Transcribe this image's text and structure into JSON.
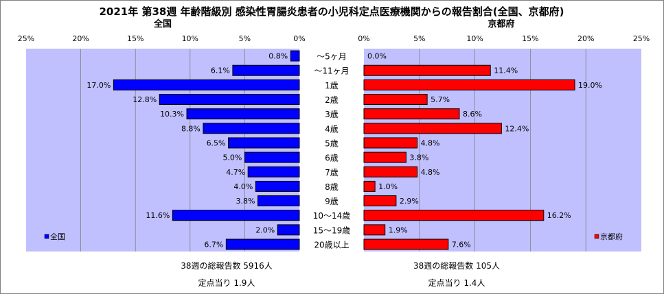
{
  "title": "2021年 第38週 年齢階級別 感染性胃腸炎患者の小児科定点医療機関からの報告割合(全国、京都府)",
  "colors": {
    "plot_bg": "#C0C0FF",
    "national_bar": "#0000FF",
    "kyoto_bar": "#FF0000",
    "grid": "#808080"
  },
  "chart_data": [
    {
      "type": "bar",
      "orientation": "horizontal-reversed",
      "title": "全国",
      "legend": "全国",
      "legend_position": "bottom-left",
      "xlim": [
        0,
        25
      ],
      "ticks": [
        "25%",
        "20%",
        "15%",
        "10%",
        "5%",
        "0%"
      ],
      "categories": [
        "～5ヶ月",
        "～11ヶ月",
        "1歳",
        "2歳",
        "3歳",
        "4歳",
        "5歳",
        "6歳",
        "7歳",
        "8歳",
        "9歳",
        "10～14歳",
        "15～19歳",
        "20歳以上"
      ],
      "values": [
        0.8,
        6.1,
        17.0,
        12.8,
        10.3,
        8.8,
        6.5,
        5.0,
        4.7,
        4.0,
        3.8,
        11.6,
        2.0,
        6.7
      ],
      "labels": [
        "0.8%",
        "6.1%",
        "17.0%",
        "12.8%",
        "10.3%",
        "8.8%",
        "6.5%",
        "5.0%",
        "4.7%",
        "4.0%",
        "3.8%",
        "11.6%",
        "2.0%",
        "6.7%"
      ],
      "grid": true
    },
    {
      "type": "bar",
      "orientation": "horizontal",
      "title": "京都府",
      "legend": "京都府",
      "legend_position": "bottom-right",
      "xlim": [
        0,
        25
      ],
      "ticks": [
        "0%",
        "5%",
        "10%",
        "15%",
        "20%",
        "25%"
      ],
      "categories": [
        "～5ヶ月",
        "～11ヶ月",
        "1歳",
        "2歳",
        "3歳",
        "4歳",
        "5歳",
        "6歳",
        "7歳",
        "8歳",
        "9歳",
        "10～14歳",
        "15～19歳",
        "20歳以上"
      ],
      "values": [
        0.0,
        11.4,
        19.0,
        5.7,
        8.6,
        12.4,
        4.8,
        3.8,
        4.8,
        1.0,
        2.9,
        16.2,
        1.9,
        7.6
      ],
      "labels": [
        "0.0%",
        "11.4%",
        "19.0%",
        "5.7%",
        "8.6%",
        "12.4%",
        "4.8%",
        "3.8%",
        "4.8%",
        "1.0%",
        "2.9%",
        "16.2%",
        "1.9%",
        "7.6%"
      ],
      "grid": true
    }
  ],
  "notes": {
    "national_total": "38週の総報告数 5916人",
    "national_per_site": "定点当り 1.9人",
    "kyoto_total": "38週の総報告数 105人",
    "kyoto_per_site": "定点当り 1.4人"
  }
}
